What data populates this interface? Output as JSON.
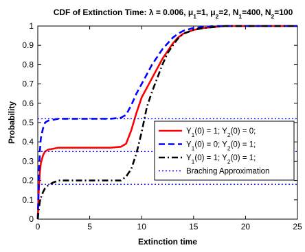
{
  "chart_data": {
    "type": "line",
    "title_parts": [
      {
        "text": "CDF of Extinction Time: λ = 0.006, μ"
      },
      {
        "text": "1",
        "sub": true
      },
      {
        "text": "=1, μ"
      },
      {
        "text": "2",
        "sub": true
      },
      {
        "text": "=2, N"
      },
      {
        "text": "1",
        "sub": true
      },
      {
        "text": "=400, N"
      },
      {
        "text": "2",
        "sub": true
      },
      {
        "text": "=100"
      }
    ],
    "xlabel": "Extinction time",
    "ylabel": "Probability",
    "xlim": [
      0,
      25
    ],
    "ylim": [
      0,
      1
    ],
    "xticks": [
      0,
      5,
      10,
      15,
      20,
      25
    ],
    "yticks": [
      0,
      0.1,
      0.2,
      0.3,
      0.4,
      0.5,
      0.6,
      0.7,
      0.8,
      0.9,
      1
    ],
    "ytick_labels": [
      "0",
      "0.1",
      "0.2",
      "0.3",
      "0.4",
      "0.5",
      "0.6",
      "0.7",
      "0.8",
      "0.9",
      "1"
    ],
    "legend_position": "right",
    "series": [
      {
        "name_parts": [
          {
            "text": "Y"
          },
          {
            "text": "1",
            "sub": true
          },
          {
            "text": "(0) = 1; Y"
          },
          {
            "text": "2",
            "sub": true
          },
          {
            "text": "(0) = 0;"
          }
        ],
        "color": "#ff0000",
        "style": "solid",
        "x": [
          0,
          0.1,
          0.2,
          0.3,
          0.5,
          0.7,
          1.0,
          1.5,
          2.0,
          3,
          5,
          7,
          8,
          8.5,
          9,
          9.5,
          10,
          10.5,
          11,
          11.5,
          12,
          12.5,
          13,
          13.5,
          14,
          15,
          16,
          17,
          18,
          19,
          25
        ],
        "y": [
          0,
          0.15,
          0.24,
          0.29,
          0.33,
          0.35,
          0.36,
          0.365,
          0.37,
          0.37,
          0.37,
          0.37,
          0.375,
          0.39,
          0.46,
          0.55,
          0.63,
          0.68,
          0.73,
          0.78,
          0.83,
          0.87,
          0.91,
          0.94,
          0.96,
          0.98,
          0.99,
          0.995,
          1.0,
          1.0,
          1.0
        ]
      },
      {
        "name_parts": [
          {
            "text": "Y"
          },
          {
            "text": "1",
            "sub": true
          },
          {
            "text": "(0) = 0; Y"
          },
          {
            "text": "2",
            "sub": true
          },
          {
            "text": "(0) = 1;"
          }
        ],
        "color": "#0000ff",
        "style": "dashed",
        "x": [
          0,
          0.1,
          0.2,
          0.3,
          0.5,
          0.7,
          1.0,
          1.5,
          2.0,
          3,
          5,
          7,
          8,
          8.5,
          9,
          9.5,
          10,
          10.5,
          11,
          11.5,
          12,
          12.5,
          13,
          13.5,
          14,
          15,
          16,
          17,
          18,
          25
        ],
        "y": [
          0,
          0.22,
          0.35,
          0.42,
          0.47,
          0.5,
          0.51,
          0.515,
          0.52,
          0.52,
          0.52,
          0.52,
          0.525,
          0.54,
          0.59,
          0.65,
          0.7,
          0.75,
          0.8,
          0.84,
          0.88,
          0.91,
          0.94,
          0.96,
          0.975,
          0.99,
          0.995,
          1.0,
          1.0,
          1.0
        ]
      },
      {
        "name_parts": [
          {
            "text": "Y"
          },
          {
            "text": "1",
            "sub": true
          },
          {
            "text": "(0) = 1; Y"
          },
          {
            "text": "2",
            "sub": true
          },
          {
            "text": "(0) = 1;"
          }
        ],
        "color": "#000000",
        "style": "dashdot",
        "x": [
          0,
          0.1,
          0.2,
          0.3,
          0.5,
          0.7,
          1.0,
          1.5,
          2.0,
          3,
          5,
          7,
          8,
          8.5,
          9,
          9.5,
          10,
          10.5,
          11,
          11.5,
          12,
          12.5,
          13,
          13.5,
          14,
          15,
          16,
          17,
          18,
          25
        ],
        "y": [
          0,
          0.05,
          0.09,
          0.11,
          0.14,
          0.16,
          0.175,
          0.19,
          0.2,
          0.2,
          0.2,
          0.2,
          0.2,
          0.22,
          0.26,
          0.34,
          0.45,
          0.58,
          0.66,
          0.73,
          0.8,
          0.86,
          0.9,
          0.935,
          0.96,
          0.98,
          0.99,
          0.995,
          1.0,
          1.0
        ]
      },
      {
        "name_parts": [
          {
            "text": "Braching Approximation"
          }
        ],
        "color": "#0000ff",
        "style": "dotted",
        "x": [
          0,
          25
        ],
        "y": [
          0.52,
          0.52
        ]
      },
      {
        "name_parts": [],
        "color": "#0000ff",
        "style": "dotted",
        "x": [
          0,
          25
        ],
        "y": [
          0.35,
          0.35
        ]
      },
      {
        "name_parts": [],
        "color": "#0000ff",
        "style": "dotted",
        "x": [
          0,
          25
        ],
        "y": [
          0.18,
          0.18
        ]
      }
    ]
  }
}
